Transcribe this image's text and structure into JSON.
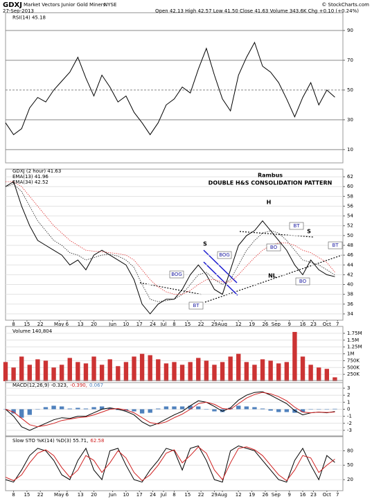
{
  "header": {
    "symbol": "GDXJ",
    "name": "Market Vectors Junior Gold Miners",
    "exchange": "NYSE",
    "date": "27-Sep-2013",
    "quote": "Open 42.13  High 42.57  Low 41.50  Close 41.63  Volume 343.6K  Chg +0.10 (+0.24%)",
    "source": "© StockCharts.com"
  },
  "chart_data": [
    {
      "type": "line",
      "title": "RSI(14) 45.18",
      "x": [
        0,
        3,
        6,
        9,
        12,
        15,
        18,
        21,
        24,
        27,
        30,
        33,
        36,
        39,
        42,
        45,
        48,
        51,
        54,
        57,
        60,
        63,
        66,
        69,
        72,
        75,
        78,
        81,
        84,
        87,
        90,
        93,
        96,
        99,
        102,
        105,
        108,
        111,
        114,
        117,
        120,
        123
      ],
      "xlim": [
        0,
        126
      ],
      "ylim": [
        2,
        100
      ],
      "yticks": [
        10,
        30,
        50,
        70,
        90
      ],
      "series": [
        {
          "color": "#000000",
          "values": [
            28,
            20,
            24,
            38,
            45,
            42,
            50,
            56,
            62,
            72,
            58,
            46,
            60,
            52,
            42,
            46,
            35,
            28,
            20,
            28,
            40,
            44,
            52,
            48,
            64,
            78,
            60,
            44,
            36,
            60,
            72,
            82,
            66,
            62,
            55,
            44,
            32,
            45,
            55,
            40,
            50,
            45.18
          ]
        }
      ],
      "overbought": {
        "level": 70,
        "color": "#4f7a4f"
      },
      "oversold": {
        "level": 30,
        "color": "#8a4444"
      }
    },
    {
      "type": "line",
      "x": [
        0,
        3,
        6,
        9,
        12,
        15,
        18,
        21,
        24,
        27,
        30,
        33,
        36,
        39,
        42,
        45,
        48,
        51,
        54,
        57,
        60,
        63,
        66,
        69,
        72,
        75,
        78,
        81,
        84,
        87,
        90,
        93,
        96,
        99,
        102,
        105,
        108,
        111,
        114,
        117,
        120,
        123
      ],
      "xlim": [
        0,
        126
      ],
      "ylim": [
        33,
        63
      ],
      "yticks": [
        34,
        36,
        38,
        40,
        42,
        44,
        46,
        48,
        50,
        52,
        54,
        56,
        58,
        60,
        62
      ],
      "grid": true,
      "xticks": [
        {
          "value": 3,
          "label": "8"
        },
        {
          "value": 8,
          "label": "15"
        },
        {
          "value": 13,
          "label": "22"
        },
        {
          "value": 20,
          "label": "May"
        },
        {
          "value": 23,
          "label": "6"
        },
        {
          "value": 28,
          "label": "13"
        },
        {
          "value": 33,
          "label": "20"
        },
        {
          "value": 40,
          "label": "Jun"
        },
        {
          "value": 45,
          "label": "10"
        },
        {
          "value": 50,
          "label": "17"
        },
        {
          "value": 55,
          "label": "24"
        },
        {
          "value": 59,
          "label": "Jul"
        },
        {
          "value": 63,
          "label": "8"
        },
        {
          "value": 68,
          "label": "15"
        },
        {
          "value": 73,
          "label": "22"
        },
        {
          "value": 78,
          "label": "29"
        },
        {
          "value": 81,
          "label": "Aug"
        },
        {
          "value": 87,
          "label": "12"
        },
        {
          "value": 92,
          "label": "19"
        },
        {
          "value": 97,
          "label": "26"
        },
        {
          "value": 101,
          "label": "Sep"
        },
        {
          "value": 106,
          "label": "9"
        },
        {
          "value": 111,
          "label": "16"
        },
        {
          "value": 115,
          "label": "23"
        },
        {
          "value": 120,
          "label": "Oct"
        },
        {
          "value": 124,
          "label": "7"
        }
      ],
      "series": [
        {
          "name": "GDXJ (2 hour) 41.63",
          "color": "#000000",
          "values": [
            60,
            61,
            56,
            52,
            49,
            48,
            47,
            46,
            44,
            45,
            43,
            46,
            47,
            46,
            45,
            44,
            41,
            36,
            34,
            36,
            37,
            37,
            39,
            42,
            44,
            42,
            39,
            38,
            43,
            48,
            50,
            51,
            53,
            51,
            49,
            47,
            44,
            42,
            45,
            43,
            42,
            41.6
          ]
        },
        {
          "name": "EMA(13) 41.96",
          "color": "#222222",
          "dash": true,
          "values": [
            60,
            60.5,
            59,
            56,
            53,
            51,
            49,
            48,
            46.5,
            46,
            45,
            45.5,
            46,
            46.2,
            45.8,
            45,
            43.5,
            40,
            37,
            36.5,
            36.7,
            37,
            38,
            40,
            42,
            42.5,
            41,
            40,
            41,
            44,
            47,
            49,
            50.5,
            51,
            50.5,
            49,
            47,
            45,
            44.5,
            44,
            43,
            41.96
          ]
        },
        {
          "name": "EMA(34) 42.52",
          "color": "#e03030",
          "dash": true,
          "values": [
            61,
            61,
            60,
            58,
            56,
            54,
            52,
            50.5,
            49,
            48,
            47,
            46.8,
            46.7,
            46.5,
            46.3,
            46,
            45,
            43,
            41,
            39.5,
            38.5,
            38,
            38,
            38.8,
            40,
            41,
            41,
            40.5,
            40.5,
            42,
            43.8,
            45.5,
            47,
            48,
            48.5,
            48.5,
            48,
            47,
            46.5,
            45.5,
            44.5,
            42.52
          ]
        }
      ],
      "annotations": [
        "Rambus",
        "DOUBLE H&S CONSOLIDATION PATTERN",
        "S",
        "H",
        "S",
        "NL",
        "BOG",
        "BOG",
        "BT",
        "BT",
        "BT",
        "BO",
        "BO"
      ]
    },
    {
      "type": "bar",
      "title": "Volume 140,804",
      "x": [
        0,
        3,
        6,
        9,
        12,
        15,
        18,
        21,
        24,
        27,
        30,
        33,
        36,
        39,
        42,
        45,
        48,
        51,
        54,
        57,
        60,
        63,
        66,
        69,
        72,
        75,
        78,
        81,
        84,
        87,
        90,
        93,
        96,
        99,
        102,
        105,
        108,
        111,
        114,
        117,
        120,
        123
      ],
      "xlim": [
        0,
        126
      ],
      "ylim": [
        0,
        1900000
      ],
      "yticks": [
        {
          "value": 250000,
          "label": "250K"
        },
        {
          "value": 500000,
          "label": "500K"
        },
        {
          "value": 750000,
          "label": "750K"
        },
        {
          "value": 1000000,
          "label": "1M"
        },
        {
          "value": 1250000,
          "label": "1.25M"
        },
        {
          "value": 1500000,
          "label": "1.5M"
        },
        {
          "value": 1750000,
          "label": "1.75M"
        }
      ],
      "series": [
        {
          "color": "#cc3333",
          "values": [
            700000,
            500000,
            900000,
            600000,
            800000,
            750000,
            500000,
            600000,
            850000,
            700000,
            650000,
            900000,
            600000,
            800000,
            550000,
            700000,
            900000,
            1000000,
            950000,
            800000,
            650000,
            700000,
            600000,
            700000,
            850000,
            750000,
            600000,
            700000,
            900000,
            1000000,
            700000,
            600000,
            800000,
            750000,
            650000,
            700000,
            1800000,
            900000,
            600000,
            500000,
            450000,
            140804
          ]
        }
      ]
    },
    {
      "type": "combo",
      "x": [
        0,
        3,
        6,
        9,
        12,
        15,
        18,
        21,
        24,
        27,
        30,
        33,
        36,
        39,
        42,
        45,
        48,
        51,
        54,
        57,
        60,
        63,
        66,
        69,
        72,
        75,
        78,
        81,
        84,
        87,
        90,
        93,
        96,
        99,
        102,
        105,
        108,
        111,
        114,
        117,
        120,
        123
      ],
      "xlim": [
        0,
        126
      ],
      "ylim": [
        -3.7,
        3.7
      ],
      "yticks": [
        -3,
        -2,
        -1,
        0,
        1,
        2,
        3
      ],
      "series": [
        {
          "name": "MACD(12,26,9) -0.323,",
          "type": "line",
          "color": "#000000",
          "values": [
            0,
            -1,
            -2.5,
            -3,
            -2.5,
            -2,
            -1.5,
            -1.2,
            -1.3,
            -1,
            -1,
            -0.5,
            0,
            0.2,
            0,
            -0.3,
            -0.8,
            -1.8,
            -2.4,
            -2,
            -1.4,
            -0.8,
            -0.3,
            0.5,
            1.2,
            1,
            0.4,
            -0.3,
            0.2,
            1.3,
            2,
            2.4,
            2.5,
            2,
            1.4,
            0.8,
            -0.2,
            -0.8,
            -0.5,
            -0.4,
            -0.5,
            -0.323
          ]
        },
        {
          "name": "-0.390,",
          "type": "line",
          "color": "#d02020",
          "values": [
            0,
            -0.4,
            -1.3,
            -2.2,
            -2.5,
            -2.3,
            -2,
            -1.6,
            -1.4,
            -1.2,
            -1.1,
            -0.8,
            -0.4,
            0,
            0.1,
            -0.1,
            -0.5,
            -1.2,
            -1.9,
            -2.1,
            -1.8,
            -1.2,
            -0.7,
            0,
            0.8,
            1,
            0.7,
            0.1,
            0,
            0.8,
            1.6,
            2.1,
            2.4,
            2.2,
            1.8,
            1.2,
            0.3,
            -0.4,
            -0.5,
            -0.4,
            -0.45,
            -0.39
          ]
        },
        {
          "name": "0.067",
          "type": "bar",
          "color": "#4f81bd",
          "values": [
            0,
            -0.6,
            -1.2,
            -0.8,
            0,
            0.3,
            0.5,
            0.4,
            0.1,
            0.2,
            0.1,
            0.3,
            0.4,
            0.2,
            -0.1,
            -0.2,
            -0.3,
            -0.6,
            -0.5,
            0.1,
            0.4,
            0.4,
            0.4,
            0.5,
            0.4,
            0,
            -0.3,
            -0.4,
            0.2,
            0.5,
            0.4,
            0.3,
            0.1,
            -0.2,
            -0.4,
            -0.4,
            -0.5,
            -0.4,
            0,
            0,
            -0.05,
            0.067
          ]
        }
      ]
    },
    {
      "type": "line",
      "x": [
        0,
        3,
        6,
        9,
        12,
        15,
        18,
        21,
        24,
        27,
        30,
        33,
        36,
        39,
        42,
        45,
        48,
        51,
        54,
        57,
        60,
        63,
        66,
        69,
        72,
        75,
        78,
        81,
        84,
        87,
        90,
        93,
        96,
        99,
        102,
        105,
        108,
        111,
        114,
        117,
        120,
        123
      ],
      "xlim": [
        0,
        126
      ],
      "ylim": [
        0,
        105
      ],
      "yticks": [
        20,
        50,
        80
      ],
      "xticks": [
        {
          "value": 3,
          "label": "8"
        },
        {
          "value": 8,
          "label": "15"
        },
        {
          "value": 13,
          "label": "22"
        },
        {
          "value": 20,
          "label": "May"
        },
        {
          "value": 23,
          "label": "6"
        },
        {
          "value": 28,
          "label": "13"
        },
        {
          "value": 33,
          "label": "20"
        },
        {
          "value": 40,
          "label": "Jun"
        },
        {
          "value": 45,
          "label": "10"
        },
        {
          "value": 50,
          "label": "17"
        },
        {
          "value": 55,
          "label": "24"
        },
        {
          "value": 59,
          "label": "Jul"
        },
        {
          "value": 63,
          "label": "8"
        },
        {
          "value": 68,
          "label": "15"
        },
        {
          "value": 73,
          "label": "22"
        },
        {
          "value": 78,
          "label": "29"
        },
        {
          "value": 81,
          "label": "Aug"
        },
        {
          "value": 87,
          "label": "12"
        },
        {
          "value": 92,
          "label": "19"
        },
        {
          "value": 97,
          "label": "26"
        },
        {
          "value": 101,
          "label": "Sep"
        },
        {
          "value": 106,
          "label": "9"
        },
        {
          "value": 111,
          "label": "16"
        },
        {
          "value": 115,
          "label": "23"
        },
        {
          "value": 120,
          "label": "Oct"
        },
        {
          "value": 124,
          "label": "7"
        }
      ],
      "series": [
        {
          "name": "Slow STO %K(14) %D(3) 55.71,",
          "color": "#000000",
          "values": [
            20,
            15,
            40,
            70,
            85,
            80,
            60,
            30,
            20,
            60,
            85,
            40,
            20,
            80,
            85,
            50,
            20,
            15,
            40,
            60,
            85,
            80,
            40,
            85,
            90,
            60,
            20,
            15,
            80,
            90,
            85,
            80,
            60,
            40,
            20,
            15,
            60,
            85,
            50,
            20,
            70,
            55.71
          ]
        },
        {
          "name": "62.58",
          "color": "#d02020",
          "values": [
            25,
            18,
            30,
            55,
            75,
            82,
            70,
            45,
            25,
            40,
            70,
            60,
            35,
            55,
            80,
            65,
            35,
            18,
            30,
            50,
            75,
            82,
            55,
            70,
            88,
            75,
            40,
            20,
            55,
            85,
            88,
            82,
            70,
            50,
            30,
            18,
            40,
            70,
            65,
            35,
            50,
            62.58
          ]
        }
      ]
    }
  ]
}
